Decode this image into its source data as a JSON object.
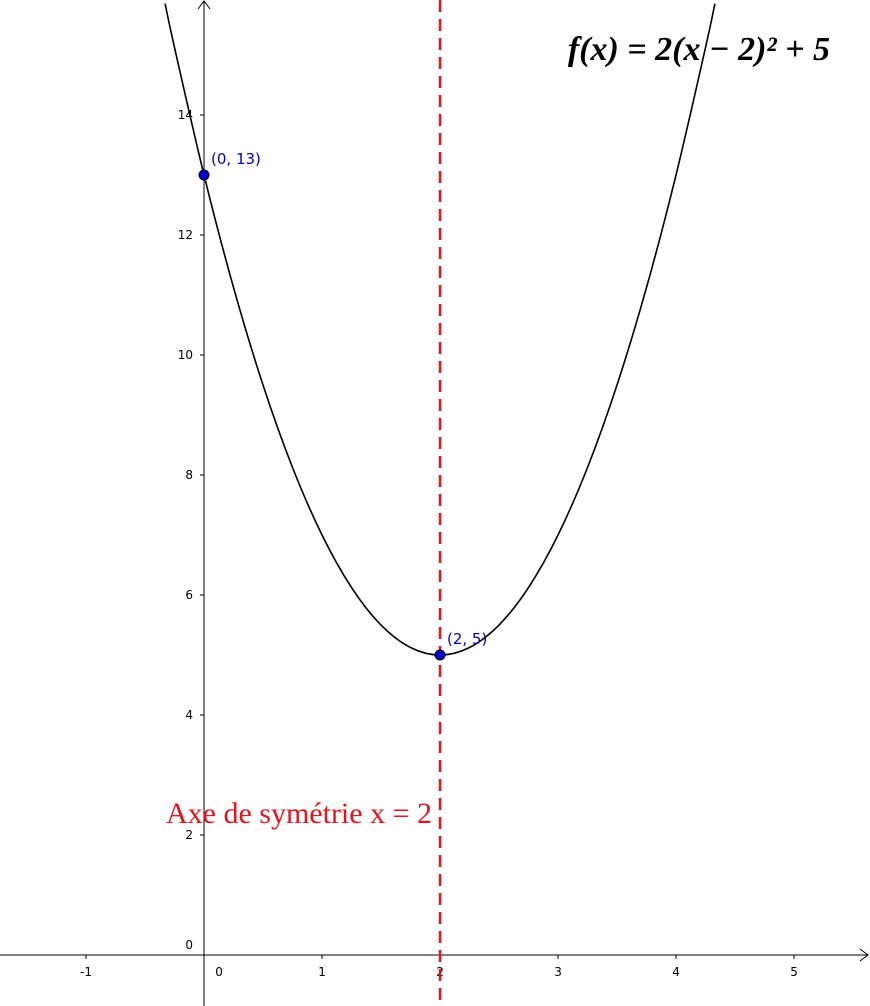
{
  "chart_data": {
    "type": "line",
    "title": "f(x) = 2(x − 2)² + 5",
    "xlim": [
      -1.729,
      5.644
    ],
    "ylim": [
      -0.85,
      15.917
    ],
    "xticks": [
      -1,
      0,
      1,
      2,
      3,
      4,
      5
    ],
    "yticks": [
      0,
      2,
      4,
      6,
      8,
      10,
      12,
      14
    ],
    "series": [
      {
        "color": "#000000",
        "x": [
          -0.33,
          -0.25,
          0,
          0.25,
          0.5,
          0.75,
          1,
          1.25,
          1.5,
          1.75,
          2,
          2.25,
          2.5,
          2.75,
          3,
          3.25,
          3.5,
          3.75,
          4,
          4.25,
          4.33
        ],
        "values": [
          15.858,
          15.125,
          13,
          11.125,
          9.5,
          8.125,
          7,
          6.125,
          5.5,
          5.125,
          5,
          5.125,
          5.5,
          6.125,
          7,
          8.125,
          9.5,
          11.125,
          13,
          15.125,
          15.858
        ]
      }
    ],
    "points": [
      {
        "x": 0,
        "y": 13,
        "label": "(0, 13)",
        "color": "#0000cc"
      },
      {
        "x": 2,
        "y": 5,
        "label": "(2, 5)",
        "color": "#0000cc"
      }
    ],
    "vline": {
      "x": 2,
      "label": "Axe de symétrie x = 2",
      "color": "#e8131a"
    }
  }
}
